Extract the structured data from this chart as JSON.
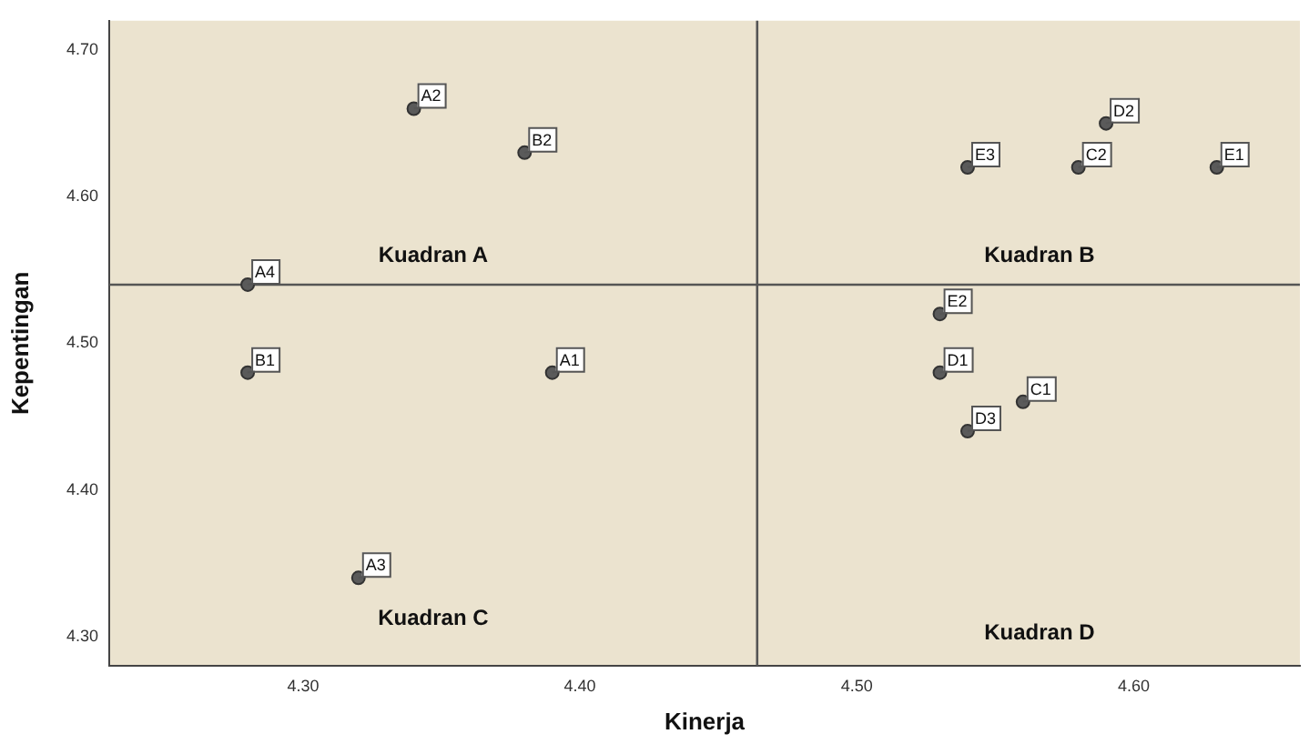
{
  "chart_data": {
    "type": "scatter",
    "xlabel": "Kinerja",
    "ylabel": "Kepentingan",
    "xlim": [
      4.23,
      4.66
    ],
    "ylim": [
      4.28,
      4.72
    ],
    "xticks": [
      {
        "value": 4.3,
        "label": "4.30"
      },
      {
        "value": 4.4,
        "label": "4.40"
      },
      {
        "value": 4.5,
        "label": "4.50"
      },
      {
        "value": 4.6,
        "label": "4.60"
      }
    ],
    "yticks": [
      {
        "value": 4.3,
        "label": "4.30"
      },
      {
        "value": 4.4,
        "label": "4.40"
      },
      {
        "value": 4.5,
        "label": "4.50"
      },
      {
        "value": 4.6,
        "label": "4.60"
      },
      {
        "value": 4.7,
        "label": "4.70"
      }
    ],
    "grid": false,
    "legend": false,
    "marker": "circle",
    "series": [
      {
        "name": "A2",
        "color": "#5a5a5a",
        "x": [
          4.34
        ],
        "values": [
          4.66
        ]
      },
      {
        "name": "B2",
        "color": "#5a5a5a",
        "x": [
          4.38
        ],
        "values": [
          4.63
        ]
      },
      {
        "name": "A4",
        "color": "#5a5a5a",
        "x": [
          4.28
        ],
        "values": [
          4.54
        ]
      },
      {
        "name": "B1",
        "color": "#5a5a5a",
        "x": [
          4.28
        ],
        "values": [
          4.48
        ]
      },
      {
        "name": "A1",
        "color": "#5a5a5a",
        "x": [
          4.39
        ],
        "values": [
          4.48
        ]
      },
      {
        "name": "A3",
        "color": "#5a5a5a",
        "x": [
          4.32
        ],
        "values": [
          4.34
        ]
      },
      {
        "name": "E3",
        "color": "#5a5a5a",
        "x": [
          4.54
        ],
        "values": [
          4.62
        ]
      },
      {
        "name": "C2",
        "color": "#5a5a5a",
        "x": [
          4.58
        ],
        "values": [
          4.62
        ]
      },
      {
        "name": "D2",
        "color": "#5a5a5a",
        "x": [
          4.59
        ],
        "values": [
          4.65
        ]
      },
      {
        "name": "E1",
        "color": "#5a5a5a",
        "x": [
          4.63
        ],
        "values": [
          4.62
        ]
      },
      {
        "name": "E2",
        "color": "#5a5a5a",
        "x": [
          4.53
        ],
        "values": [
          4.52
        ]
      },
      {
        "name": "D1",
        "color": "#5a5a5a",
        "x": [
          4.53
        ],
        "values": [
          4.48
        ]
      },
      {
        "name": "C1",
        "color": "#5a5a5a",
        "x": [
          4.56
        ],
        "values": [
          4.46
        ]
      },
      {
        "name": "D3",
        "color": "#5a5a5a",
        "x": [
          4.54
        ],
        "values": [
          4.44
        ]
      }
    ],
    "ref_lines": [
      {
        "axis": "x",
        "value": 4.464,
        "color": "#555555"
      },
      {
        "axis": "y",
        "value": 4.54,
        "color": "#555555"
      }
    ],
    "annotations": [
      "Kuadran A",
      "Kuadran B",
      "Kuadran C",
      "Kuadran D"
    ]
  }
}
